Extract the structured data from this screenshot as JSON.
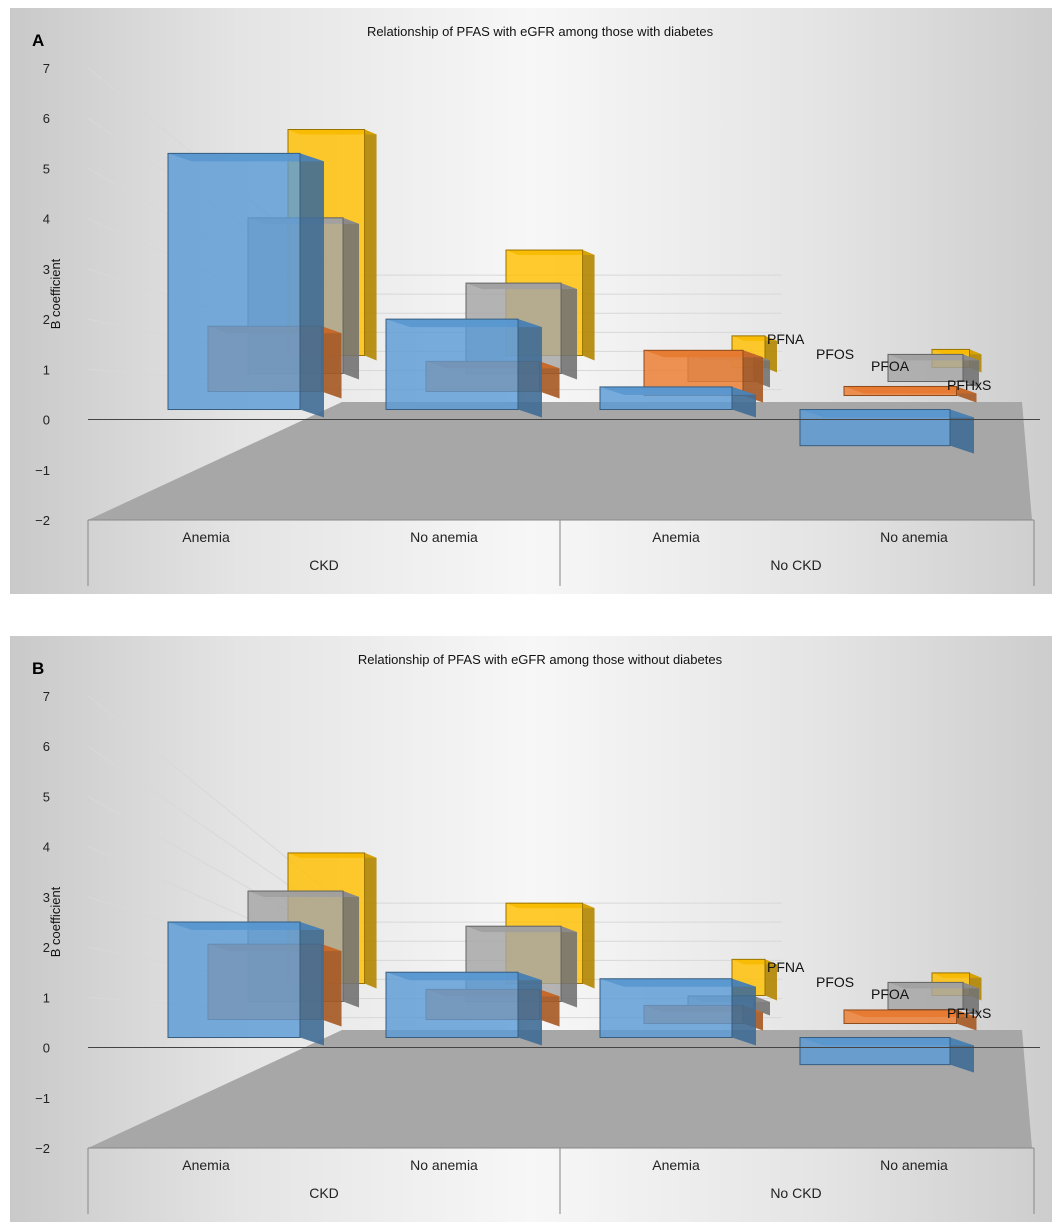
{
  "chart_data": [
    {
      "type": "bar",
      "panel_letter": "A",
      "title": "Relationship of PFAS with eGFR among those with diabetes",
      "ylabel": "B coefficient",
      "ylim": [
        -2,
        7
      ],
      "yticks": [
        "−2",
        "−1",
        "0",
        "1",
        "2",
        "3",
        "4",
        "5",
        "6",
        "7"
      ],
      "categories": [
        "Anemia",
        "No anemia",
        "Anemia",
        "No anemia"
      ],
      "category_groups": [
        {
          "label": "CKD",
          "span": [
            0,
            1
          ]
        },
        {
          "label": "No CKD",
          "span": [
            2,
            3
          ]
        }
      ],
      "series": [
        {
          "name": "PFNA",
          "color": "#ffc000",
          "values": [
            4.5,
            2.1,
            0.7,
            0.4
          ]
        },
        {
          "name": "PFOS",
          "color": "#a5a5a5",
          "values": [
            3.1,
            1.8,
            0.6,
            0.6
          ]
        },
        {
          "name": "PFOA",
          "color": "#ed7d31",
          "values": [
            1.3,
            0.6,
            1.0,
            0.2
          ]
        },
        {
          "name": "PFHxS",
          "color": "#5b9bd5",
          "values": [
            5.1,
            1.8,
            0.5,
            -0.8
          ]
        }
      ]
    },
    {
      "type": "bar",
      "panel_letter": "B",
      "title": "Relationship of PFAS with eGFR among those without diabetes",
      "ylabel": "B coefficient",
      "ylim": [
        -2,
        7
      ],
      "yticks": [
        "−2",
        "−1",
        "0",
        "1",
        "2",
        "3",
        "4",
        "5",
        "6",
        "7"
      ],
      "categories": [
        "Anemia",
        "No anemia",
        "Anemia",
        "No anemia"
      ],
      "category_groups": [
        {
          "label": "CKD",
          "span": [
            0,
            1
          ]
        },
        {
          "label": "No CKD",
          "span": [
            2,
            3
          ]
        }
      ],
      "series": [
        {
          "name": "PFNA",
          "color": "#ffc000",
          "values": [
            2.6,
            1.6,
            0.8,
            0.5
          ]
        },
        {
          "name": "PFOS",
          "color": "#a5a5a5",
          "values": [
            2.2,
            1.5,
            0.3,
            0.6
          ]
        },
        {
          "name": "PFOA",
          "color": "#ed7d31",
          "values": [
            1.5,
            0.6,
            0.4,
            0.3
          ]
        },
        {
          "name": "PFHxS",
          "color": "#5b9bd5",
          "values": [
            2.3,
            1.3,
            1.3,
            -0.6
          ]
        }
      ]
    }
  ]
}
